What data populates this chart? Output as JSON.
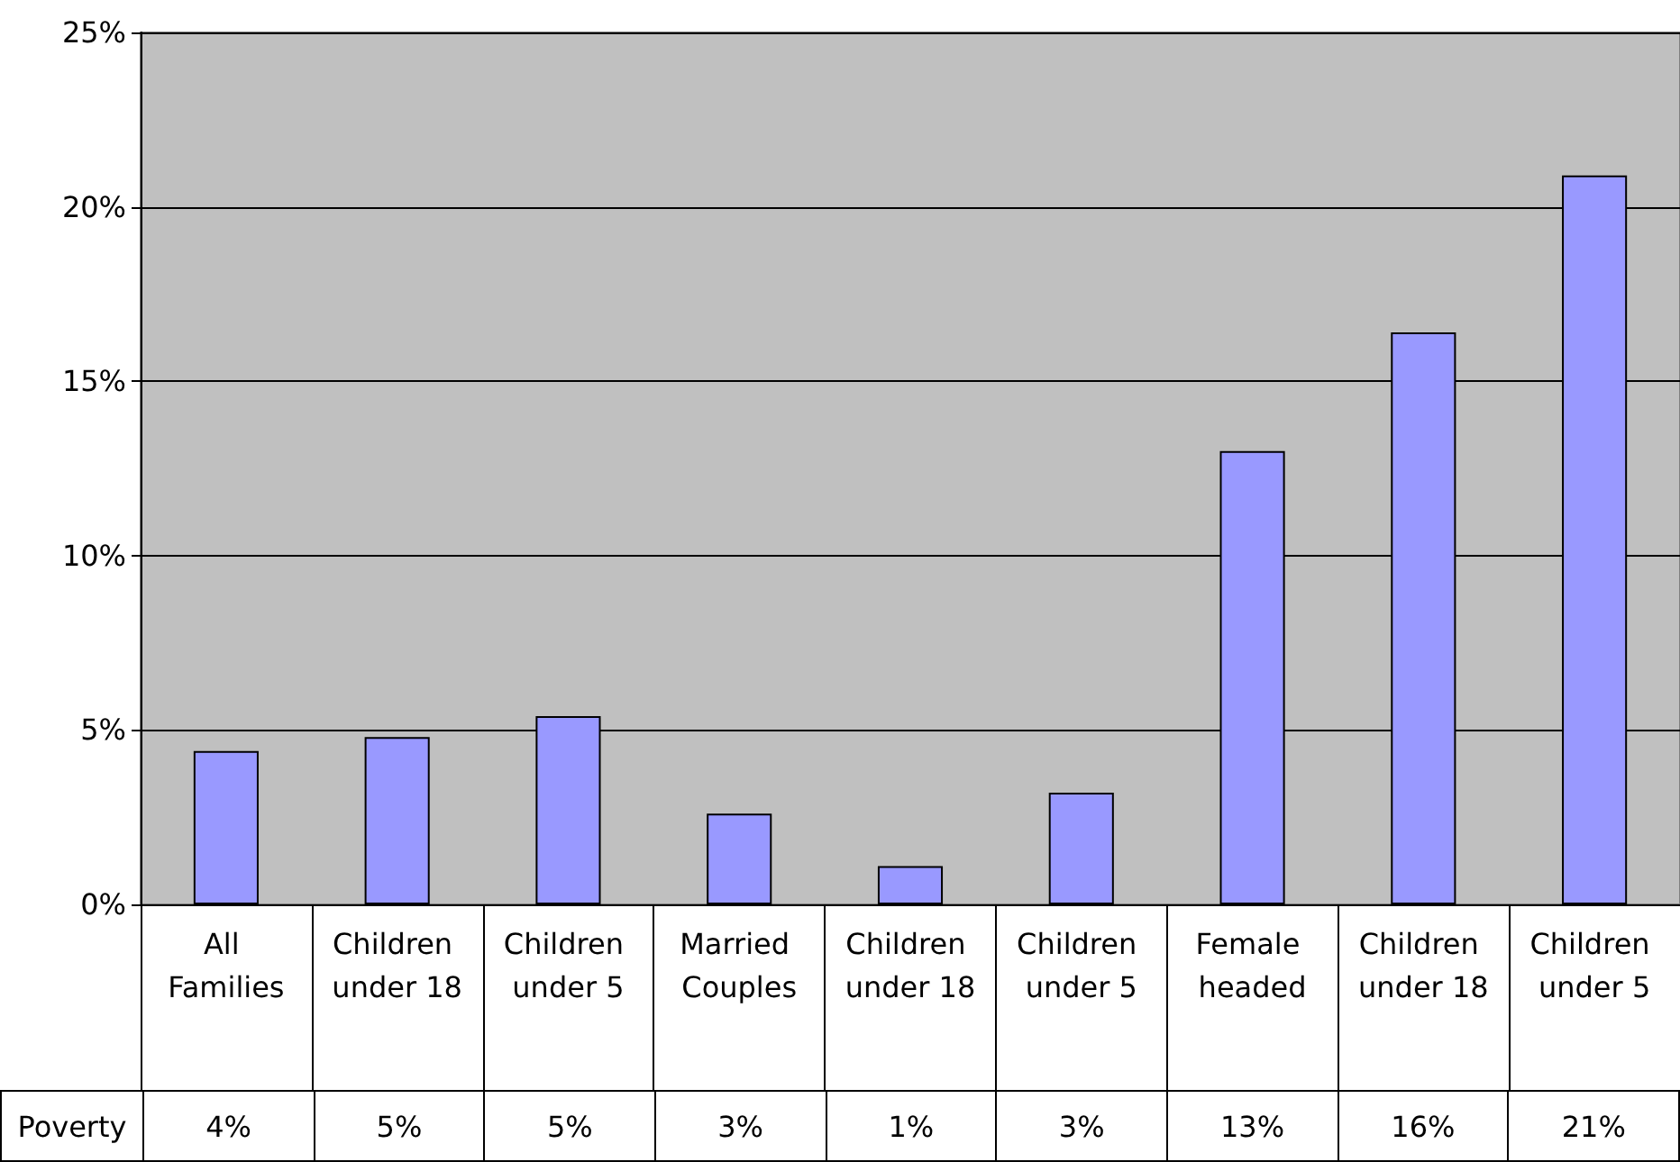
{
  "chart_data": {
    "type": "bar",
    "categories": [
      "All Families",
      "Children under 18",
      "Children under 5",
      "Married Couples",
      "Children under 18",
      "Children under 5",
      "Female headed",
      "Children under 18",
      "Children under 5"
    ],
    "series": [
      {
        "name": "Poverty",
        "color": "#9999ff",
        "values": [
          4.4,
          4.8,
          5.4,
          2.6,
          1.1,
          3.2,
          13.0,
          16.4,
          20.9
        ],
        "value_labels": [
          "4%",
          "5%",
          "5%",
          "3%",
          "1%",
          "3%",
          "13%",
          "16%",
          "21%"
        ]
      }
    ],
    "ylim": [
      0,
      25
    ],
    "yticks": [
      {
        "value": 0,
        "label": "0%"
      },
      {
        "value": 5,
        "label": "5%"
      },
      {
        "value": 10,
        "label": "10%"
      },
      {
        "value": 15,
        "label": "15%"
      },
      {
        "value": 20,
        "label": "20%"
      },
      {
        "value": 25,
        "label": "25%"
      }
    ],
    "grid": "y"
  }
}
